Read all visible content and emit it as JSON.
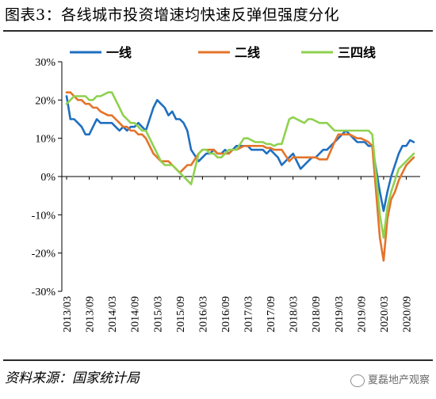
{
  "figure": {
    "title": "图表3：各线城市投资增速均快速反弹但强度分化",
    "source": "资料来源：国家统计局",
    "watermark": "夏磊地产观察"
  },
  "chart_data": {
    "type": "line",
    "x_ticks": [
      "2013/03",
      "2013/09",
      "2014/03",
      "2014/09",
      "2015/03",
      "2015/09",
      "2016/03",
      "2016/09",
      "2017/03",
      "2017/09",
      "2018/03",
      "2018/09",
      "2019/03",
      "2019/09",
      "2020/03",
      "2020/09"
    ],
    "y_ticks": [
      "30%",
      "20%",
      "10%",
      "0%",
      "-10%",
      "-20%",
      "-30%"
    ],
    "ylim": [
      -30,
      30
    ],
    "xlim": [
      "2013/03",
      "2020/11"
    ],
    "grid": false,
    "legend_position": "top",
    "series": [
      {
        "name": "一线",
        "color": "#1f6fc0",
        "points": [
          [
            "2013/03",
            21
          ],
          [
            "2013/04",
            15
          ],
          [
            "2013/05",
            15
          ],
          [
            "2013/06",
            14
          ],
          [
            "2013/07",
            13
          ],
          [
            "2013/08",
            11
          ],
          [
            "2013/09",
            11
          ],
          [
            "2013/10",
            13
          ],
          [
            "2013/11",
            15
          ],
          [
            "2013/12",
            14
          ],
          [
            "2014/02",
            14
          ],
          [
            "2014/03",
            14
          ],
          [
            "2014/04",
            13
          ],
          [
            "2014/05",
            12
          ],
          [
            "2014/06",
            13
          ],
          [
            "2014/07",
            12
          ],
          [
            "2014/08",
            13
          ],
          [
            "2014/09",
            13
          ],
          [
            "2014/10",
            14
          ],
          [
            "2014/11",
            13
          ],
          [
            "2014/12",
            12
          ],
          [
            "2015/02",
            18
          ],
          [
            "2015/03",
            20
          ],
          [
            "2015/04",
            19
          ],
          [
            "2015/05",
            18
          ],
          [
            "2015/06",
            16
          ],
          [
            "2015/07",
            17
          ],
          [
            "2015/08",
            15
          ],
          [
            "2015/09",
            15
          ],
          [
            "2015/10",
            14
          ],
          [
            "2015/11",
            12
          ],
          [
            "2015/12",
            7
          ],
          [
            "2016/02",
            4
          ],
          [
            "2016/03",
            5
          ],
          [
            "2016/04",
            6
          ],
          [
            "2016/05",
            6
          ],
          [
            "2016/06",
            7
          ],
          [
            "2016/07",
            6
          ],
          [
            "2016/08",
            6
          ],
          [
            "2016/09",
            7
          ],
          [
            "2016/10",
            6
          ],
          [
            "2016/11",
            7
          ],
          [
            "2016/12",
            8
          ],
          [
            "2017/02",
            8
          ],
          [
            "2017/03",
            8
          ],
          [
            "2017/04",
            7
          ],
          [
            "2017/05",
            7
          ],
          [
            "2017/06",
            7
          ],
          [
            "2017/07",
            7
          ],
          [
            "2017/08",
            6
          ],
          [
            "2017/09",
            7
          ],
          [
            "2017/10",
            6
          ],
          [
            "2017/11",
            5
          ],
          [
            "2017/12",
            3
          ],
          [
            "2018/02",
            5
          ],
          [
            "2018/03",
            6
          ],
          [
            "2018/04",
            4
          ],
          [
            "2018/05",
            2
          ],
          [
            "2018/06",
            3
          ],
          [
            "2018/07",
            4
          ],
          [
            "2018/08",
            5
          ],
          [
            "2018/09",
            5
          ],
          [
            "2018/10",
            6
          ],
          [
            "2018/11",
            7
          ],
          [
            "2018/12",
            7
          ],
          [
            "2019/02",
            9
          ],
          [
            "2019/03",
            10
          ],
          [
            "2019/04",
            11
          ],
          [
            "2019/05",
            12
          ],
          [
            "2019/06",
            11
          ],
          [
            "2019/07",
            10
          ],
          [
            "2019/08",
            9
          ],
          [
            "2019/09",
            9
          ],
          [
            "2019/10",
            9
          ],
          [
            "2019/11",
            8
          ],
          [
            "2019/12",
            8
          ],
          [
            "2020/02",
            -4
          ],
          [
            "2020/03",
            -9
          ],
          [
            "2020/04",
            -4
          ],
          [
            "2020/05",
            0
          ],
          [
            "2020/06",
            3
          ],
          [
            "2020/07",
            6
          ],
          [
            "2020/08",
            8
          ],
          [
            "2020/09",
            8
          ],
          [
            "2020/10",
            9.5
          ],
          [
            "2020/11",
            9
          ]
        ]
      },
      {
        "name": "二线",
        "color": "#e4742a",
        "points": [
          [
            "2013/03",
            22
          ],
          [
            "2013/04",
            22
          ],
          [
            "2013/05",
            21
          ],
          [
            "2013/06",
            20
          ],
          [
            "2013/07",
            20
          ],
          [
            "2013/08",
            19
          ],
          [
            "2013/09",
            19
          ],
          [
            "2013/10",
            18
          ],
          [
            "2013/11",
            18
          ],
          [
            "2013/12",
            17
          ],
          [
            "2014/02",
            16
          ],
          [
            "2014/03",
            16
          ],
          [
            "2014/04",
            15
          ],
          [
            "2014/05",
            14
          ],
          [
            "2014/06",
            13
          ],
          [
            "2014/07",
            13
          ],
          [
            "2014/08",
            12
          ],
          [
            "2014/09",
            12
          ],
          [
            "2014/10",
            11
          ],
          [
            "2014/11",
            11
          ],
          [
            "2014/12",
            10
          ],
          [
            "2015/02",
            6
          ],
          [
            "2015/03",
            5
          ],
          [
            "2015/04",
            4
          ],
          [
            "2015/05",
            4
          ],
          [
            "2015/06",
            4
          ],
          [
            "2015/07",
            3
          ],
          [
            "2015/08",
            2
          ],
          [
            "2015/09",
            1
          ],
          [
            "2015/10",
            2
          ],
          [
            "2015/11",
            3
          ],
          [
            "2015/12",
            3
          ],
          [
            "2016/02",
            6
          ],
          [
            "2016/03",
            7
          ],
          [
            "2016/04",
            7
          ],
          [
            "2016/05",
            7
          ],
          [
            "2016/06",
            7
          ],
          [
            "2016/07",
            6
          ],
          [
            "2016/08",
            6
          ],
          [
            "2016/09",
            6
          ],
          [
            "2016/10",
            6
          ],
          [
            "2016/11",
            7
          ],
          [
            "2016/12",
            7
          ],
          [
            "2017/02",
            8
          ],
          [
            "2017/03",
            8
          ],
          [
            "2017/04",
            8
          ],
          [
            "2017/05",
            8
          ],
          [
            "2017/06",
            8
          ],
          [
            "2017/07",
            8
          ],
          [
            "2017/08",
            7.5
          ],
          [
            "2017/09",
            7.5
          ],
          [
            "2017/10",
            7
          ],
          [
            "2017/11",
            7
          ],
          [
            "2017/12",
            7
          ],
          [
            "2018/02",
            4
          ],
          [
            "2018/03",
            5
          ],
          [
            "2018/04",
            5
          ],
          [
            "2018/05",
            5
          ],
          [
            "2018/06",
            5
          ],
          [
            "2018/07",
            5
          ],
          [
            "2018/08",
            5
          ],
          [
            "2018/09",
            5
          ],
          [
            "2018/10",
            4.5
          ],
          [
            "2018/11",
            4.5
          ],
          [
            "2018/12",
            4.5
          ],
          [
            "2019/02",
            9
          ],
          [
            "2019/03",
            11
          ],
          [
            "2019/04",
            11
          ],
          [
            "2019/05",
            11
          ],
          [
            "2019/06",
            11
          ],
          [
            "2019/07",
            10.5
          ],
          [
            "2019/08",
            10
          ],
          [
            "2019/09",
            10
          ],
          [
            "2019/10",
            9.5
          ],
          [
            "2019/11",
            9
          ],
          [
            "2019/12",
            8
          ],
          [
            "2020/02",
            -16
          ],
          [
            "2020/03",
            -22
          ],
          [
            "2020/04",
            -11
          ],
          [
            "2020/05",
            -6
          ],
          [
            "2020/06",
            -4
          ],
          [
            "2020/07",
            -1
          ],
          [
            "2020/08",
            1
          ],
          [
            "2020/09",
            3
          ],
          [
            "2020/10",
            4
          ],
          [
            "2020/11",
            5
          ]
        ]
      },
      {
        "name": "三四线",
        "color": "#8fd14f",
        "points": [
          [
            "2013/03",
            19
          ],
          [
            "2013/04",
            20
          ],
          [
            "2013/05",
            21
          ],
          [
            "2013/06",
            21
          ],
          [
            "2013/07",
            21
          ],
          [
            "2013/08",
            21
          ],
          [
            "2013/09",
            20
          ],
          [
            "2013/10",
            20
          ],
          [
            "2013/11",
            21
          ],
          [
            "2013/12",
            21
          ],
          [
            "2014/02",
            22
          ],
          [
            "2014/03",
            22
          ],
          [
            "2014/04",
            20
          ],
          [
            "2014/05",
            18
          ],
          [
            "2014/06",
            16
          ],
          [
            "2014/07",
            15
          ],
          [
            "2014/08",
            14
          ],
          [
            "2014/09",
            14
          ],
          [
            "2014/10",
            13
          ],
          [
            "2014/11",
            12
          ],
          [
            "2014/12",
            12
          ],
          [
            "2015/02",
            8
          ],
          [
            "2015/03",
            6
          ],
          [
            "2015/04",
            4
          ],
          [
            "2015/05",
            3
          ],
          [
            "2015/06",
            3
          ],
          [
            "2015/07",
            3
          ],
          [
            "2015/08",
            2
          ],
          [
            "2015/09",
            1
          ],
          [
            "2015/10",
            0
          ],
          [
            "2015/11",
            -1
          ],
          [
            "2015/12",
            -2
          ],
          [
            "2016/02",
            6
          ],
          [
            "2016/03",
            7
          ],
          [
            "2016/04",
            7
          ],
          [
            "2016/05",
            6
          ],
          [
            "2016/06",
            6
          ],
          [
            "2016/07",
            5
          ],
          [
            "2016/08",
            5
          ],
          [
            "2016/09",
            6
          ],
          [
            "2016/10",
            7
          ],
          [
            "2016/11",
            7
          ],
          [
            "2016/12",
            7
          ],
          [
            "2017/02",
            10
          ],
          [
            "2017/03",
            10
          ],
          [
            "2017/04",
            9.5
          ],
          [
            "2017/05",
            9
          ],
          [
            "2017/06",
            9
          ],
          [
            "2017/07",
            9
          ],
          [
            "2017/08",
            8.5
          ],
          [
            "2017/09",
            8.5
          ],
          [
            "2017/10",
            8
          ],
          [
            "2017/11",
            8.5
          ],
          [
            "2017/12",
            8.5
          ],
          [
            "2018/02",
            15
          ],
          [
            "2018/03",
            15.5
          ],
          [
            "2018/04",
            15
          ],
          [
            "2018/05",
            14.5
          ],
          [
            "2018/06",
            14
          ],
          [
            "2018/07",
            15
          ],
          [
            "2018/08",
            15
          ],
          [
            "2018/09",
            14.5
          ],
          [
            "2018/10",
            14
          ],
          [
            "2018/11",
            14
          ],
          [
            "2018/12",
            14
          ],
          [
            "2019/02",
            12
          ],
          [
            "2019/03",
            12
          ],
          [
            "2019/04",
            12
          ],
          [
            "2019/05",
            12
          ],
          [
            "2019/06",
            12
          ],
          [
            "2019/07",
            12
          ],
          [
            "2019/08",
            12
          ],
          [
            "2019/09",
            12
          ],
          [
            "2019/10",
            12
          ],
          [
            "2019/11",
            12
          ],
          [
            "2019/12",
            11
          ],
          [
            "2020/02",
            -10
          ],
          [
            "2020/03",
            -16
          ],
          [
            "2020/04",
            -8
          ],
          [
            "2020/05",
            -4
          ],
          [
            "2020/06",
            -1
          ],
          [
            "2020/07",
            2
          ],
          [
            "2020/08",
            3
          ],
          [
            "2020/09",
            4
          ],
          [
            "2020/10",
            5
          ],
          [
            "2020/11",
            6
          ]
        ]
      }
    ]
  }
}
